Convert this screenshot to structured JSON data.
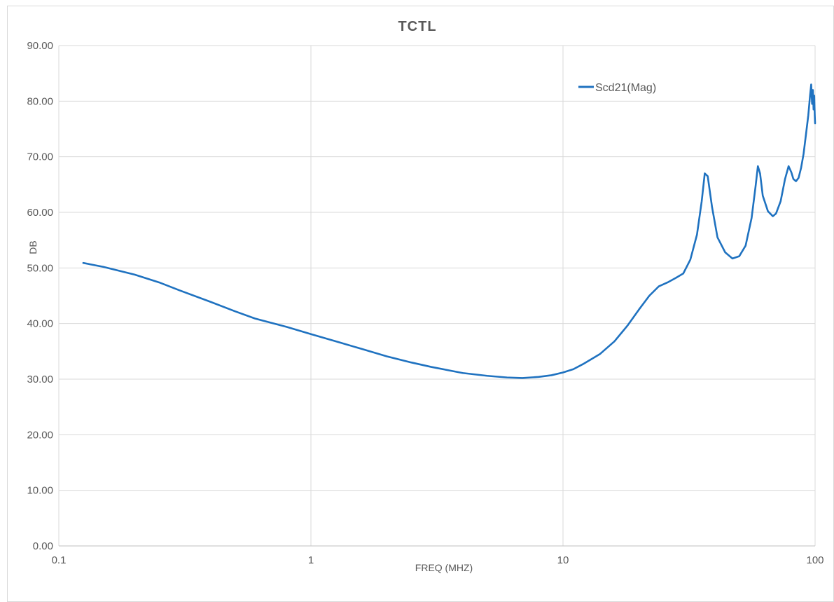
{
  "chart_data": {
    "type": "line",
    "title": "TCTL",
    "xlabel": "FREQ (MHZ)",
    "ylabel": "DB",
    "x_scale": "log",
    "xlim": [
      0.1,
      100
    ],
    "ylim": [
      0,
      90
    ],
    "x_ticks": [
      "0.1",
      "1",
      "10",
      "100"
    ],
    "y_ticks": [
      "0.00",
      "10.00",
      "20.00",
      "30.00",
      "40.00",
      "50.00",
      "60.00",
      "70.00",
      "80.00",
      "90.00"
    ],
    "grid": true,
    "legend_position": "top-right",
    "series": [
      {
        "name": "Scd21(Mag)",
        "color": "#1f72c0",
        "x": [
          0.125,
          0.15,
          0.2,
          0.25,
          0.3,
          0.4,
          0.5,
          0.6,
          0.7,
          0.8,
          1.0,
          1.3,
          1.6,
          2.0,
          2.5,
          3.0,
          4.0,
          5.0,
          6.0,
          6.9,
          8.0,
          9.0,
          10.0,
          11.0,
          12.0,
          14.0,
          16.0,
          18.0,
          20.0,
          22.0,
          24.0,
          26.0,
          28.0,
          30.0,
          32.0,
          34.0,
          35.5,
          36.5,
          37.5,
          39.0,
          41.0,
          44.0,
          47.0,
          50.0,
          53.0,
          56.0,
          58.0,
          59.3,
          60.5,
          62.0,
          65.0,
          68.0,
          70.0,
          73.0,
          76.0,
          78.5,
          80.5,
          82.0,
          84.0,
          86.0,
          88.0,
          90.0,
          92.0,
          94.0,
          95.5,
          96.5,
          97.3,
          98.0,
          98.6,
          99.2,
          99.7,
          100.0
        ],
        "y": [
          50.9,
          50.2,
          48.8,
          47.4,
          46.0,
          43.9,
          42.2,
          40.9,
          40.1,
          39.4,
          38.1,
          36.6,
          35.4,
          34.1,
          33.0,
          32.2,
          31.1,
          30.6,
          30.3,
          30.2,
          30.4,
          30.7,
          31.2,
          31.8,
          32.7,
          34.5,
          36.8,
          39.6,
          42.5,
          45.0,
          46.7,
          47.4,
          48.2,
          49.0,
          51.5,
          56.0,
          62.0,
          67.0,
          66.5,
          61.0,
          55.5,
          52.8,
          51.7,
          52.1,
          54.0,
          59.0,
          64.5,
          68.3,
          67.0,
          63.0,
          60.2,
          59.3,
          59.8,
          62.0,
          66.0,
          68.3,
          67.2,
          66.0,
          65.6,
          66.2,
          68.0,
          70.5,
          74.0,
          77.5,
          81.0,
          83.0,
          79.5,
          82.0,
          78.5,
          81.0,
          77.5,
          76.0
        ]
      }
    ]
  }
}
